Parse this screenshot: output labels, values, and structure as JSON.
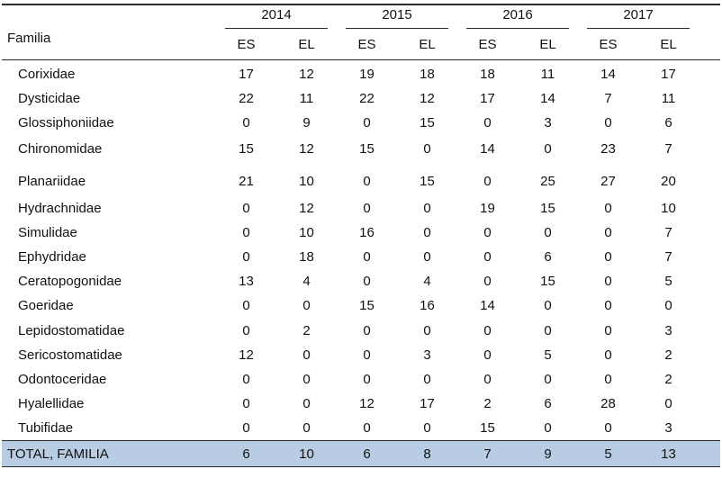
{
  "table": {
    "row_header": "Familia",
    "years": [
      "2014",
      "2015",
      "2016",
      "2017"
    ],
    "subcolumns": [
      "ES",
      "EL",
      "ES",
      "EL",
      "ES",
      "EL",
      "ES",
      "EL"
    ],
    "rows": [
      {
        "familia": "Corixidae",
        "values": [
          "17",
          "12",
          "19",
          "18",
          "18",
          "11",
          "14",
          "17"
        ]
      },
      {
        "familia": "Dysticidae",
        "values": [
          "22",
          "11",
          "22",
          "12",
          "17",
          "14",
          "7",
          "11"
        ]
      },
      {
        "familia": "Glossiphoniidae",
        "values": [
          "0",
          "9",
          "0",
          "15",
          "0",
          "3",
          "0",
          "6"
        ]
      },
      {
        "familia": "Chironomidae",
        "values": [
          "15",
          "12",
          "15",
          "0",
          "14",
          "0",
          "23",
          "7"
        ]
      },
      {
        "familia": "Planariidae",
        "values": [
          "21",
          "10",
          "0",
          "15",
          "0",
          "25",
          "27",
          "20"
        ]
      },
      {
        "familia": "Hydrachnidae",
        "values": [
          "0",
          "12",
          "0",
          "0",
          "19",
          "15",
          "0",
          "10"
        ]
      },
      {
        "familia": "Simulidae",
        "values": [
          "0",
          "10",
          "16",
          "0",
          "0",
          "0",
          "0",
          "7"
        ]
      },
      {
        "familia": "Ephydridae",
        "values": [
          "0",
          "18",
          "0",
          "0",
          "0",
          "6",
          "0",
          "7"
        ]
      },
      {
        "familia": "Ceratopogonidae",
        "values": [
          "13",
          "4",
          "0",
          "4",
          "0",
          "15",
          "0",
          "5"
        ]
      },
      {
        "familia": "Goeridae",
        "values": [
          "0",
          "0",
          "15",
          "16",
          "14",
          "0",
          "0",
          "0"
        ]
      },
      {
        "familia": "Lepidostomatidae",
        "values": [
          "0",
          "2",
          "0",
          "0",
          "0",
          "0",
          "0",
          "3"
        ]
      },
      {
        "familia": "Sericostomatidae",
        "values": [
          "12",
          "0",
          "0",
          "3",
          "0",
          "5",
          "0",
          "2"
        ]
      },
      {
        "familia": "Odontoceridae",
        "values": [
          "0",
          "0",
          "0",
          "0",
          "0",
          "0",
          "0",
          "2"
        ]
      },
      {
        "familia": "Hyalellidae",
        "values": [
          "0",
          "0",
          "12",
          "17",
          "2",
          "6",
          "28",
          "0"
        ]
      },
      {
        "familia": "Tubifidae",
        "values": [
          "0",
          "0",
          "0",
          "0",
          "15",
          "0",
          "0",
          "3"
        ]
      }
    ],
    "total": {
      "label": "TOTAL, FAMILIA",
      "values": [
        "6",
        "10",
        "6",
        "8",
        "7",
        "9",
        "5",
        "13"
      ]
    },
    "colors": {
      "total_background": "#b8cce4",
      "rule": "#2a2a2a"
    }
  }
}
